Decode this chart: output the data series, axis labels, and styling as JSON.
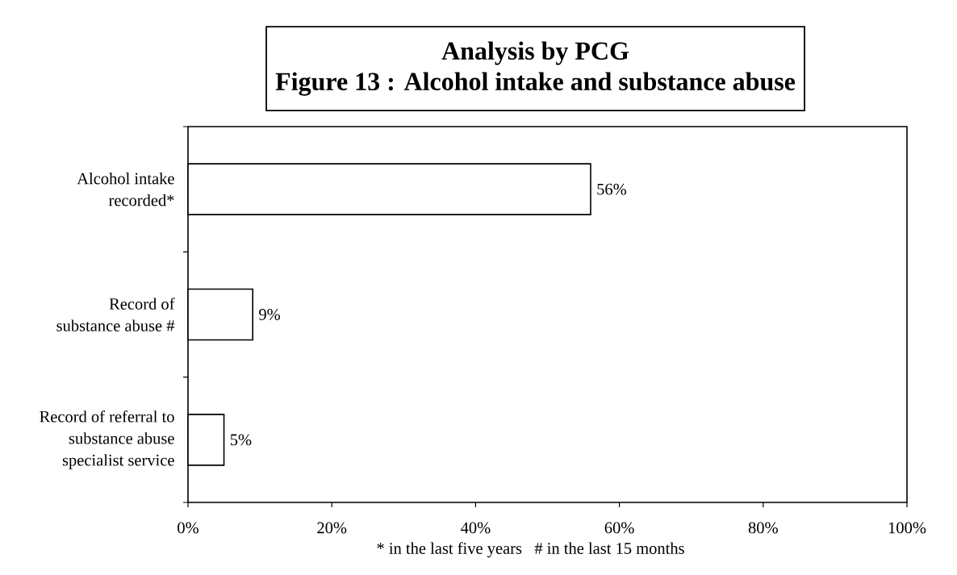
{
  "chart_data": {
    "type": "bar",
    "orientation": "horizontal",
    "title": "Analysis by PCG",
    "subtitle": "Figure 13 : Alcohol intake and substance abuse",
    "xlabel": "* in the last five years   # in the last 15 months",
    "categories": [
      "Alcohol intake\nrecorded*",
      "Record of\nsubstance abuse #",
      "Record of referral to\nsubstance abuse\nspecialist service"
    ],
    "values": [
      56,
      9,
      5
    ],
    "value_labels": [
      "56%",
      "9%",
      "5%"
    ],
    "color": "#ffffff",
    "xlim": [
      0,
      100
    ],
    "xticks": [
      {
        "value": 0,
        "label": "0%"
      },
      {
        "value": 20,
        "label": "20%"
      },
      {
        "value": 40,
        "label": "40%"
      },
      {
        "value": 60,
        "label": "60%"
      },
      {
        "value": 80,
        "label": "80%"
      },
      {
        "value": 100,
        "label": "100%"
      }
    ]
  }
}
